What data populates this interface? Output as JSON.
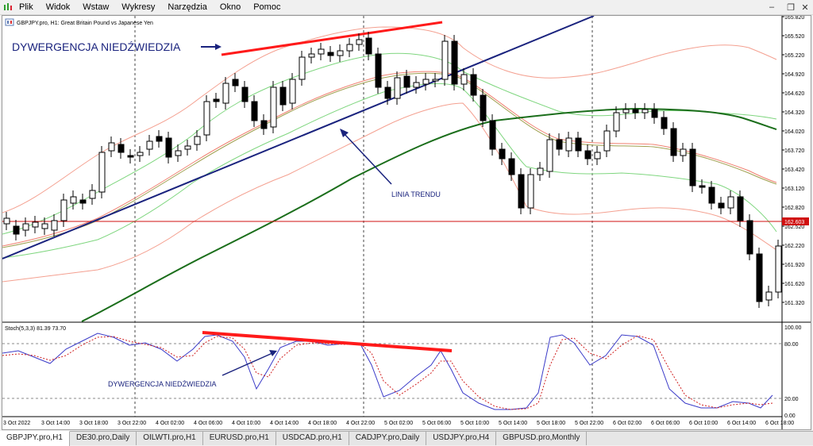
{
  "menu": {
    "items": [
      "Plik",
      "Widok",
      "Wstaw",
      "Wykresy",
      "Narzędzia",
      "Okno",
      "Pomoc"
    ]
  },
  "chart": {
    "header": "GBPJPY.pro, H1:  Great Britain Pound vs Japanese Yen",
    "price_labels": [
      "165.820",
      "165.520",
      "165.220",
      "164.920",
      "164.620",
      "164.320",
      "164.020",
      "163.720",
      "163.420",
      "163.120",
      "162.820",
      "162.520",
      "162.220",
      "161.920",
      "161.620",
      "161.320"
    ],
    "current_price": "162.603",
    "time_labels": [
      "3 Oct 2022",
      "3 Oct 14:00",
      "3 Oct 18:00",
      "3 Oct 22:00",
      "4 Oct 02:00",
      "4 Oct 06:00",
      "4 Oct 10:00",
      "4 Oct 14:00",
      "4 Oct 18:00",
      "4 Oct 22:00",
      "5 Oct 02:00",
      "5 Oct 06:00",
      "5 Oct 10:00",
      "5 Oct 14:00",
      "5 Oct 18:00",
      "5 Oct 22:00",
      "6 Oct 02:00",
      "6 Oct 06:00",
      "6 Oct 10:00",
      "6 Oct 14:00",
      "6 Oct 18:00"
    ],
    "annotations": {
      "top_divergence": "DYWERGENCJA NIEDŹWIEDZIA",
      "trend_line": "LINIA TRENDU",
      "stoch_divergence": "DYWERGENCJA NIEDŹWIEDZIA"
    },
    "colors": {
      "trend_line": "#1a237e",
      "divergence": "#ff1a1a",
      "ma_long": "#1b6e1b",
      "bands_outer": "#f4a090",
      "bands_inner": "#7fd67f",
      "current_price": "#d01010",
      "stoch_main": "#3a3ac8",
      "stoch_signal": "#d02020"
    }
  },
  "stochastic": {
    "header": "Stoch(5,3,3) 81.39 73.70",
    "levels": [
      "100.00",
      "80.00",
      "20.00",
      "0.00"
    ]
  },
  "tabs": [
    "GBPJPY.pro,H1",
    "DE30.pro,Daily",
    "OILWTI.pro,H1",
    "EURUSD.pro,H1",
    "USDCAD.pro,H1",
    "CADJPY.pro,Daily",
    "USDJPY.pro,H4",
    "GBPUSD.pro,Monthly"
  ]
}
